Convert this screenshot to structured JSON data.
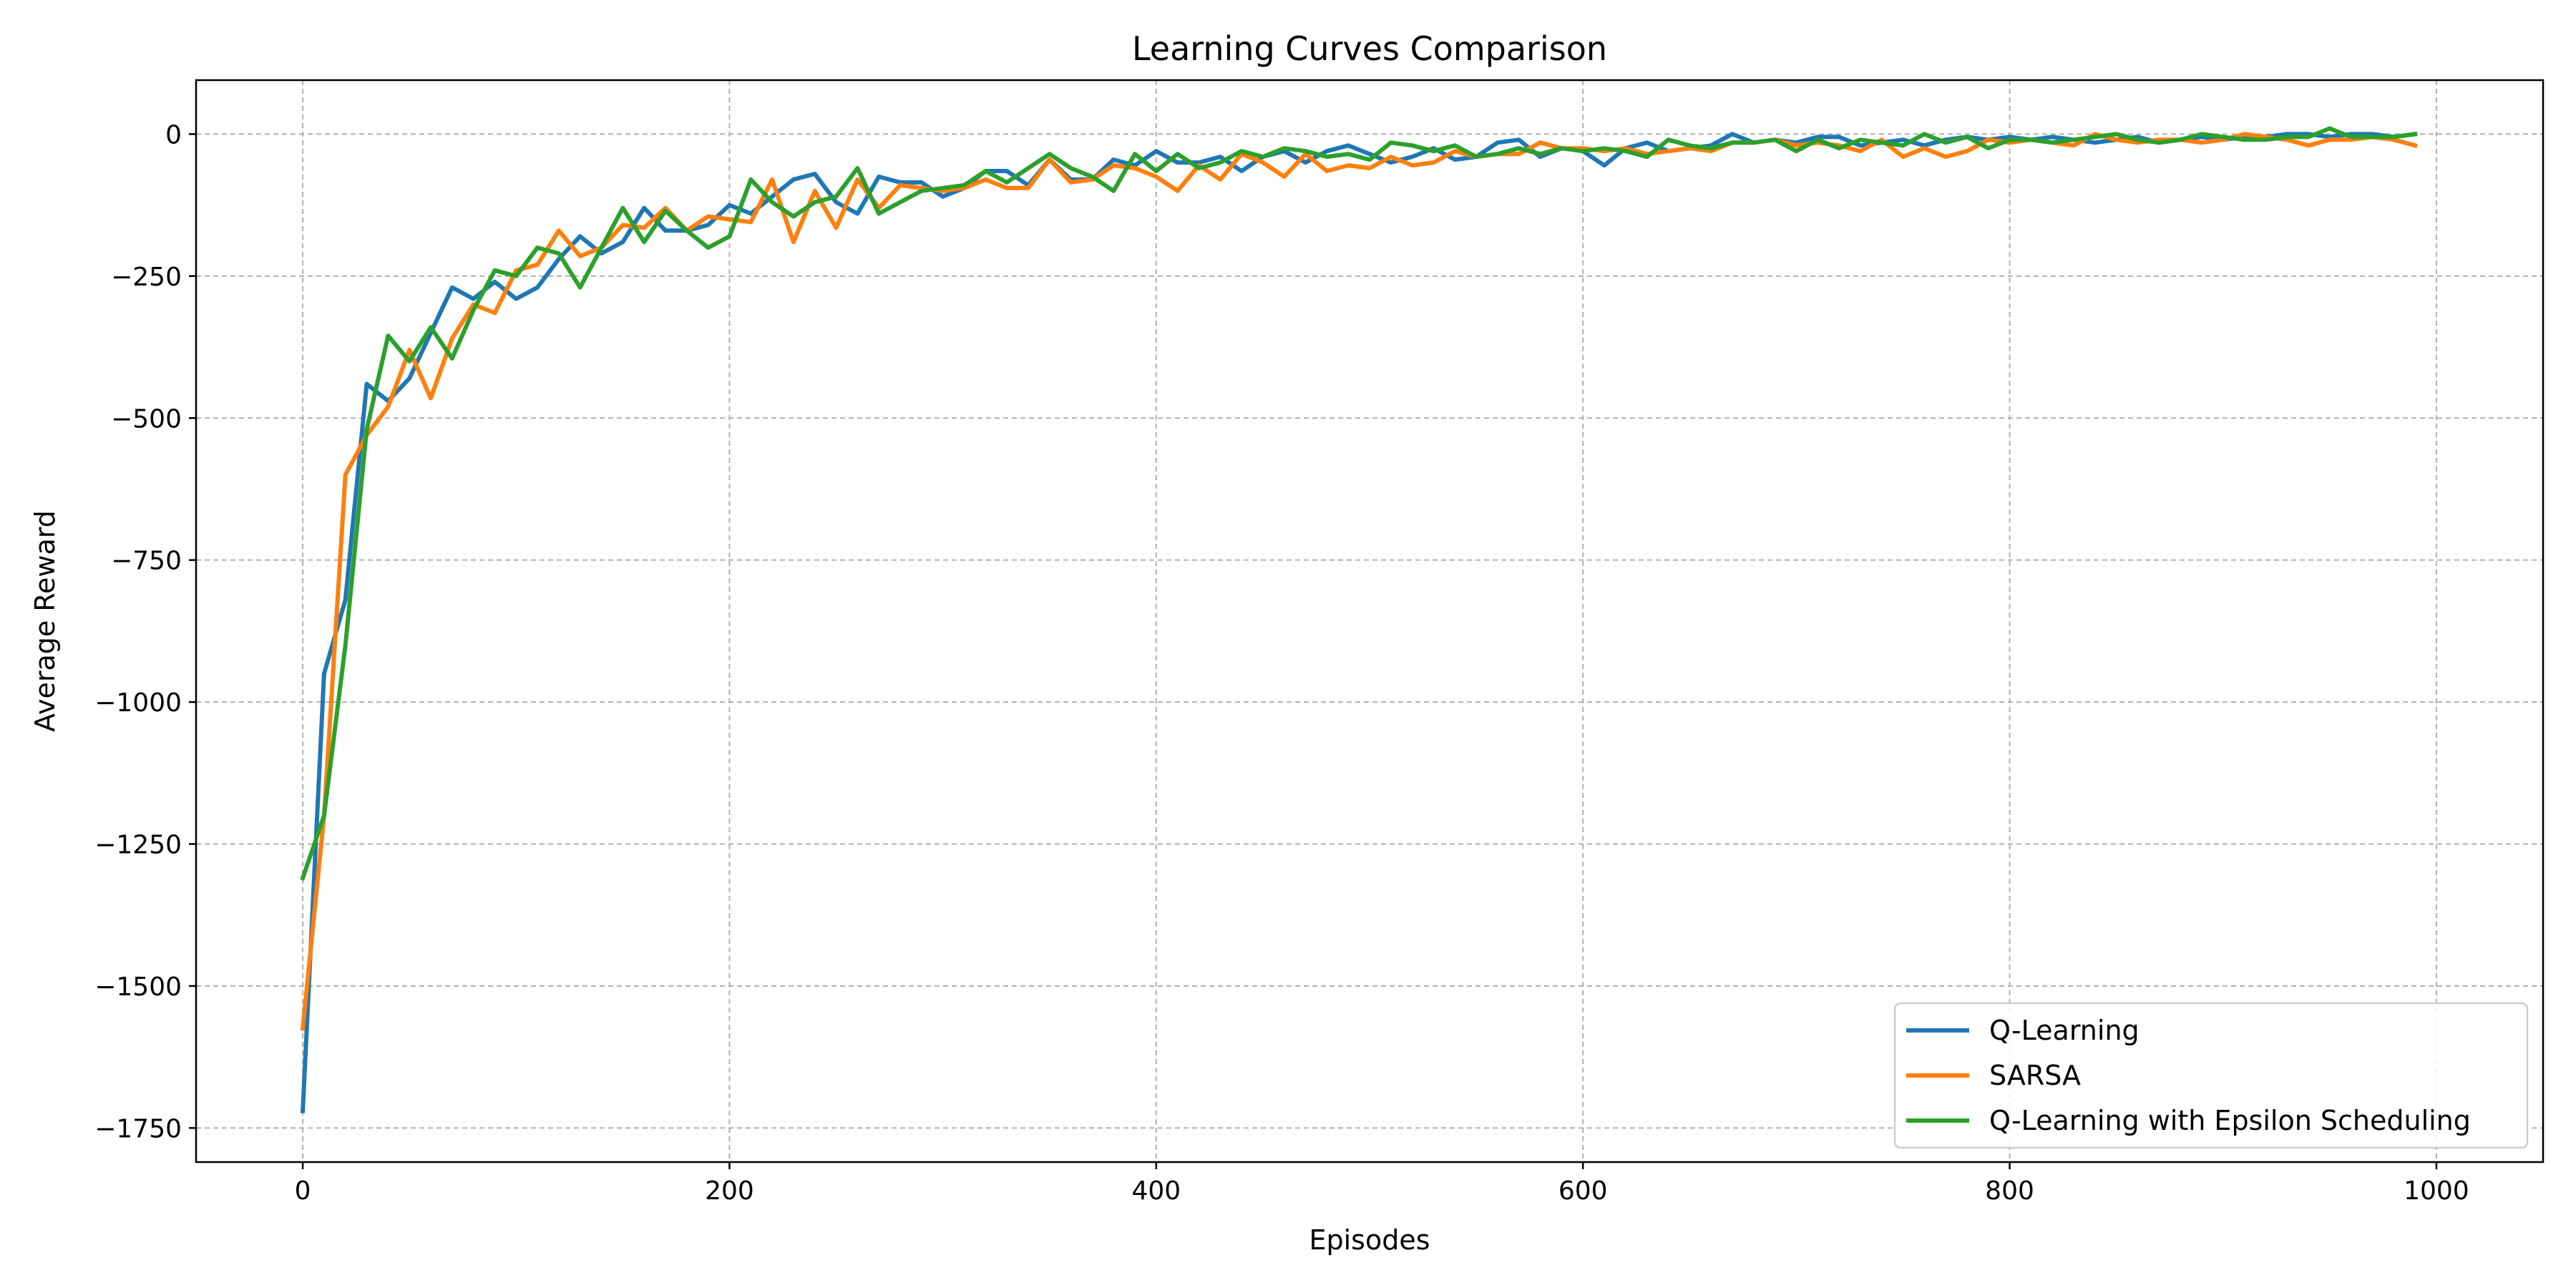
{
  "chart_data": {
    "type": "line",
    "title": "Learning Curves Comparison",
    "xlabel": "Episodes",
    "ylabel": "Average Reward",
    "xlim": [
      -50,
      1050
    ],
    "ylim": [
      -1810,
      95
    ],
    "xticks": [
      0,
      200,
      400,
      600,
      800,
      1000
    ],
    "xtick_labels": [
      "0",
      "200",
      "400",
      "600",
      "800",
      "1000"
    ],
    "yticks": [
      0,
      -250,
      -500,
      -750,
      -1000,
      -1250,
      -1500,
      -1750
    ],
    "ytick_labels": [
      "0",
      "−250",
      "−500",
      "−750",
      "−1000",
      "−1250",
      "−1500",
      "−1750"
    ],
    "grid": true,
    "legend_position": "bottom-right",
    "x": [
      0,
      10,
      20,
      30,
      40,
      50,
      60,
      70,
      80,
      90,
      100,
      110,
      120,
      130,
      140,
      150,
      160,
      170,
      180,
      190,
      200,
      210,
      220,
      230,
      240,
      250,
      260,
      270,
      280,
      290,
      300,
      310,
      320,
      330,
      340,
      350,
      360,
      370,
      380,
      390,
      400,
      410,
      420,
      430,
      440,
      450,
      460,
      470,
      480,
      490,
      500,
      510,
      520,
      530,
      540,
      550,
      560,
      570,
      580,
      590,
      600,
      610,
      620,
      630,
      640,
      650,
      660,
      670,
      680,
      690,
      700,
      710,
      720,
      730,
      740,
      750,
      760,
      770,
      780,
      790,
      800,
      810,
      820,
      830,
      840,
      850,
      860,
      870,
      880,
      890,
      900,
      910,
      920,
      930,
      940,
      950,
      960,
      970,
      980,
      990
    ],
    "series": [
      {
        "name": "Q-Learning",
        "color": "#1f77b4",
        "values": [
          -1720,
          -950,
          -820,
          -440,
          -470,
          -430,
          -350,
          -270,
          -290,
          -260,
          -290,
          -270,
          -220,
          -180,
          -210,
          -190,
          -130,
          -170,
          -170,
          -160,
          -125,
          -140,
          -110,
          -80,
          -70,
          -120,
          -140,
          -75,
          -85,
          -85,
          -110,
          -95,
          -65,
          -65,
          -90,
          -45,
          -80,
          -80,
          -45,
          -55,
          -30,
          -50,
          -50,
          -40,
          -65,
          -40,
          -30,
          -50,
          -30,
          -20,
          -35,
          -50,
          -40,
          -25,
          -45,
          -40,
          -15,
          -10,
          -40,
          -25,
          -30,
          -55,
          -25,
          -15,
          -30,
          -25,
          -20,
          0,
          -15,
          -10,
          -15,
          -5,
          -5,
          -20,
          -15,
          -10,
          -20,
          -10,
          -5,
          -10,
          -5,
          -10,
          -5,
          -10,
          -15,
          -10,
          -5,
          -15,
          -10,
          -5,
          -10,
          -5,
          -5,
          0,
          0,
          -5,
          0,
          0,
          -5,
          0
        ]
      },
      {
        "name": "SARSA",
        "color": "#ff7f0e",
        "values": [
          -1575,
          -1200,
          -600,
          -530,
          -480,
          -380,
          -465,
          -360,
          -300,
          -315,
          -240,
          -230,
          -170,
          -215,
          -200,
          -160,
          -165,
          -130,
          -170,
          -145,
          -150,
          -155,
          -80,
          -190,
          -100,
          -165,
          -80,
          -130,
          -90,
          -95,
          -100,
          -95,
          -80,
          -95,
          -95,
          -45,
          -85,
          -80,
          -55,
          -60,
          -75,
          -100,
          -55,
          -80,
          -35,
          -50,
          -75,
          -35,
          -65,
          -55,
          -60,
          -40,
          -55,
          -50,
          -30,
          -40,
          -35,
          -35,
          -15,
          -25,
          -25,
          -30,
          -25,
          -35,
          -30,
          -25,
          -30,
          -15,
          -15,
          -10,
          -20,
          -15,
          -20,
          -30,
          -10,
          -40,
          -25,
          -40,
          -30,
          -10,
          -15,
          -10,
          -15,
          -20,
          0,
          -10,
          -15,
          -10,
          -10,
          -15,
          -10,
          0,
          -5,
          -10,
          -20,
          -10,
          -10,
          -5,
          -10,
          -20
        ]
      },
      {
        "name": "Q-Learning with Epsilon Scheduling",
        "color": "#2ca02c",
        "values": [
          -1310,
          -1200,
          -900,
          -520,
          -355,
          -400,
          -340,
          -395,
          -310,
          -240,
          -250,
          -200,
          -210,
          -270,
          -200,
          -130,
          -190,
          -135,
          -170,
          -200,
          -180,
          -80,
          -120,
          -145,
          -120,
          -110,
          -60,
          -140,
          -120,
          -100,
          -95,
          -90,
          -65,
          -85,
          -60,
          -35,
          -60,
          -75,
          -100,
          -35,
          -65,
          -35,
          -60,
          -50,
          -30,
          -40,
          -25,
          -30,
          -40,
          -35,
          -45,
          -15,
          -20,
          -30,
          -20,
          -40,
          -35,
          -25,
          -35,
          -25,
          -30,
          -25,
          -30,
          -40,
          -10,
          -20,
          -25,
          -15,
          -15,
          -10,
          -30,
          -10,
          -25,
          -10,
          -15,
          -20,
          0,
          -15,
          -5,
          -25,
          -10,
          -10,
          -15,
          -10,
          -5,
          0,
          -10,
          -15,
          -10,
          0,
          -5,
          -10,
          -10,
          -5,
          -5,
          10,
          -5,
          -5,
          -5,
          0
        ]
      }
    ]
  }
}
